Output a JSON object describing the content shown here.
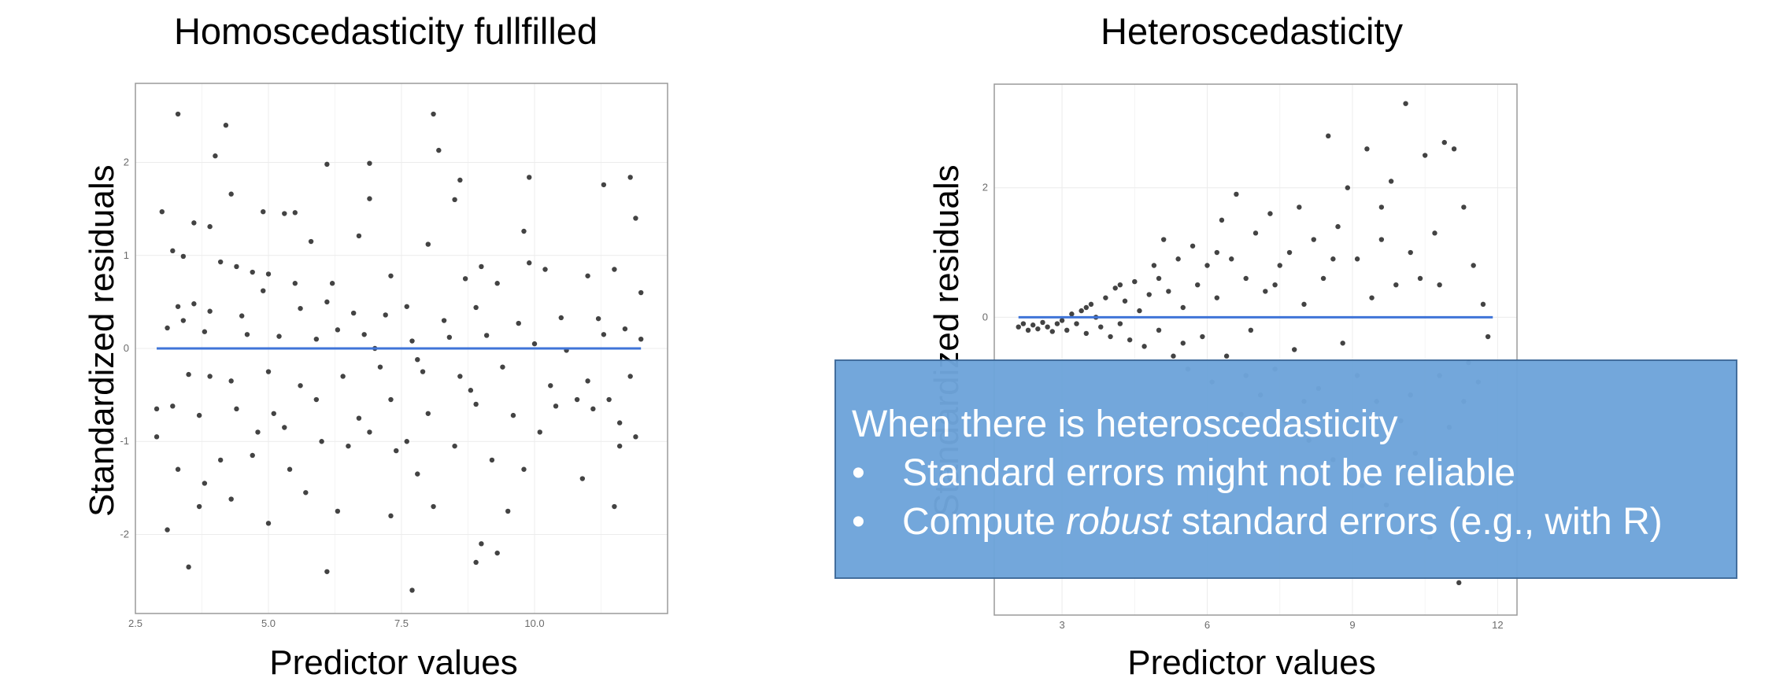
{
  "colors": {
    "fit_line": "#3f74d8",
    "points": "#1a1a1a",
    "overlay_bg": "#6fa5da",
    "grid": "#ececec"
  },
  "chart_data": [
    {
      "type": "scatter",
      "title": "Homoscedasticity fullfilled",
      "xlabel": "Predictor values",
      "ylabel": "Standardized residuals",
      "xlim": [
        2.5,
        12.5
      ],
      "ylim": [
        -2.85,
        2.85
      ],
      "xticks": [
        2.5,
        5.0,
        7.5,
        10.0
      ],
      "xtick_labels": [
        "2.5",
        "5.0",
        "7.5",
        "10.0"
      ],
      "yticks": [
        -2,
        -1,
        0,
        1,
        2
      ],
      "ytick_labels": [
        "-2",
        "-1",
        "0",
        "1",
        "2"
      ],
      "grid": true,
      "fit_line": {
        "y": 0,
        "x_from": 2.9,
        "x_to": 12.0
      },
      "points": [
        [
          3.3,
          2.52
        ],
        [
          4.2,
          2.4
        ],
        [
          8.1,
          2.52
        ],
        [
          8.2,
          2.13
        ],
        [
          4.0,
          2.07
        ],
        [
          6.1,
          1.98
        ],
        [
          6.9,
          1.99
        ],
        [
          9.9,
          1.84
        ],
        [
          11.8,
          1.84
        ],
        [
          11.3,
          1.76
        ],
        [
          8.6,
          1.81
        ],
        [
          4.3,
          1.66
        ],
        [
          6.9,
          1.61
        ],
        [
          3.0,
          1.47
        ],
        [
          4.9,
          1.47
        ],
        [
          5.3,
          1.45
        ],
        [
          5.5,
          1.46
        ],
        [
          8.5,
          1.6
        ],
        [
          3.6,
          1.35
        ],
        [
          3.9,
          1.31
        ],
        [
          5.8,
          1.15
        ],
        [
          6.7,
          1.21
        ],
        [
          8.0,
          1.12
        ],
        [
          9.8,
          1.26
        ],
        [
          11.9,
          1.4
        ],
        [
          3.2,
          1.05
        ],
        [
          3.4,
          0.99
        ],
        [
          4.1,
          0.93
        ],
        [
          4.4,
          0.88
        ],
        [
          4.7,
          0.82
        ],
        [
          5.0,
          0.8
        ],
        [
          6.2,
          0.7
        ],
        [
          7.3,
          0.78
        ],
        [
          8.7,
          0.75
        ],
        [
          9.3,
          0.7
        ],
        [
          10.2,
          0.85
        ],
        [
          11.0,
          0.78
        ],
        [
          11.5,
          0.85
        ],
        [
          12.0,
          0.6
        ],
        [
          3.3,
          0.45
        ],
        [
          3.6,
          0.48
        ],
        [
          3.9,
          0.4
        ],
        [
          4.5,
          0.35
        ],
        [
          5.6,
          0.43
        ],
        [
          6.1,
          0.5
        ],
        [
          6.6,
          0.38
        ],
        [
          7.2,
          0.36
        ],
        [
          7.6,
          0.45
        ],
        [
          8.3,
          0.3
        ],
        [
          8.9,
          0.44
        ],
        [
          9.7,
          0.27
        ],
        [
          10.5,
          0.33
        ],
        [
          11.2,
          0.32
        ],
        [
          11.7,
          0.21
        ],
        [
          3.1,
          0.22
        ],
        [
          3.8,
          0.18
        ],
        [
          4.6,
          0.15
        ],
        [
          5.2,
          0.13
        ],
        [
          5.9,
          0.1
        ],
        [
          6.8,
          0.15
        ],
        [
          7.7,
          0.08
        ],
        [
          8.4,
          0.12
        ],
        [
          9.1,
          0.14
        ],
        [
          10.0,
          0.05
        ],
        [
          10.6,
          -0.02
        ],
        [
          11.3,
          0.15
        ],
        [
          12.0,
          0.1
        ],
        [
          3.5,
          -0.28
        ],
        [
          3.9,
          -0.3
        ],
        [
          4.3,
          -0.35
        ],
        [
          5.0,
          -0.25
        ],
        [
          5.6,
          -0.4
        ],
        [
          6.4,
          -0.3
        ],
        [
          7.1,
          -0.2
        ],
        [
          7.9,
          -0.25
        ],
        [
          8.6,
          -0.3
        ],
        [
          9.4,
          -0.2
        ],
        [
          10.3,
          -0.4
        ],
        [
          11.0,
          -0.35
        ],
        [
          11.8,
          -0.3
        ],
        [
          3.2,
          -0.62
        ],
        [
          3.7,
          -0.72
        ],
        [
          4.4,
          -0.65
        ],
        [
          5.1,
          -0.7
        ],
        [
          5.9,
          -0.55
        ],
        [
          6.7,
          -0.75
        ],
        [
          7.3,
          -0.55
        ],
        [
          8.0,
          -0.7
        ],
        [
          8.9,
          -0.6
        ],
        [
          9.6,
          -0.72
        ],
        [
          10.4,
          -0.62
        ],
        [
          11.4,
          -0.55
        ],
        [
          11.9,
          -0.95
        ],
        [
          2.9,
          -0.95
        ],
        [
          3.3,
          -1.3
        ],
        [
          3.8,
          -1.45
        ],
        [
          4.1,
          -1.2
        ],
        [
          4.7,
          -1.15
        ],
        [
          5.4,
          -1.3
        ],
        [
          6.0,
          -1.0
        ],
        [
          6.5,
          -1.05
        ],
        [
          7.4,
          -1.1
        ],
        [
          7.8,
          -1.35
        ],
        [
          8.5,
          -1.05
        ],
        [
          9.2,
          -1.2
        ],
        [
          9.8,
          -1.3
        ],
        [
          10.9,
          -1.4
        ],
        [
          11.6,
          -1.05
        ],
        [
          3.1,
          -1.95
        ],
        [
          3.7,
          -1.7
        ],
        [
          4.3,
          -1.62
        ],
        [
          5.0,
          -1.88
        ],
        [
          5.7,
          -1.55
        ],
        [
          6.3,
          -1.75
        ],
        [
          7.3,
          -1.8
        ],
        [
          8.1,
          -1.7
        ],
        [
          9.5,
          -1.75
        ],
        [
          11.5,
          -1.7
        ],
        [
          3.5,
          -2.35
        ],
        [
          6.1,
          -2.4
        ],
        [
          7.7,
          -2.6
        ],
        [
          8.9,
          -2.3
        ],
        [
          9.3,
          -2.2
        ],
        [
          9.0,
          -2.1
        ],
        [
          2.9,
          -0.65
        ],
        [
          4.8,
          -0.9
        ],
        [
          5.3,
          -0.85
        ],
        [
          6.9,
          -0.9
        ],
        [
          7.6,
          -1.0
        ],
        [
          10.1,
          -0.9
        ],
        [
          11.1,
          -0.65
        ],
        [
          3.4,
          0.3
        ],
        [
          4.9,
          0.62
        ],
        [
          5.5,
          0.7
        ],
        [
          6.3,
          0.2
        ],
        [
          7.0,
          0.0
        ],
        [
          7.8,
          -0.12
        ],
        [
          8.8,
          -0.45
        ],
        [
          9.0,
          0.88
        ],
        [
          9.9,
          0.92
        ],
        [
          10.8,
          -0.55
        ],
        [
          11.6,
          -0.8
        ]
      ]
    },
    {
      "type": "scatter",
      "title": "Heteroscedasticity",
      "xlabel": "Predictor values",
      "ylabel": "Standardized residuals",
      "xlim": [
        1.6,
        12.4
      ],
      "ylim": [
        -4.6,
        3.6
      ],
      "xticks": [
        3,
        6,
        9,
        12
      ],
      "xtick_labels": [
        "3",
        "6",
        "9",
        "12"
      ],
      "yticks": [
        0,
        2
      ],
      "ytick_labels": [
        "0",
        "2"
      ],
      "grid": true,
      "fit_line": {
        "y": 0,
        "x_from": 2.1,
        "x_to": 11.9
      },
      "points": [
        [
          2.1,
          -0.15
        ],
        [
          2.2,
          -0.1
        ],
        [
          2.3,
          -0.2
        ],
        [
          2.4,
          -0.12
        ],
        [
          2.5,
          -0.18
        ],
        [
          2.6,
          -0.08
        ],
        [
          2.7,
          -0.15
        ],
        [
          2.8,
          -0.22
        ],
        [
          2.9,
          -0.1
        ],
        [
          3.0,
          -0.05
        ],
        [
          3.1,
          -0.2
        ],
        [
          3.2,
          0.05
        ],
        [
          3.3,
          -0.1
        ],
        [
          3.4,
          0.1
        ],
        [
          3.5,
          -0.25
        ],
        [
          3.6,
          0.2
        ],
        [
          3.7,
          0.0
        ],
        [
          3.8,
          -0.15
        ],
        [
          3.9,
          0.3
        ],
        [
          4.0,
          -0.3
        ],
        [
          4.1,
          0.45
        ],
        [
          4.2,
          -0.1
        ],
        [
          4.3,
          0.25
        ],
        [
          4.4,
          -0.35
        ],
        [
          4.5,
          0.55
        ],
        [
          4.6,
          0.1
        ],
        [
          4.7,
          -0.45
        ],
        [
          4.8,
          0.35
        ],
        [
          4.9,
          0.8
        ],
        [
          5.0,
          -0.2
        ],
        [
          5.1,
          1.2
        ],
        [
          5.2,
          0.4
        ],
        [
          5.3,
          -0.6
        ],
        [
          5.4,
          0.9
        ],
        [
          5.5,
          0.15
        ],
        [
          5.6,
          -0.8
        ],
        [
          5.7,
          1.1
        ],
        [
          5.8,
          0.5
        ],
        [
          5.9,
          -0.3
        ],
        [
          6.0,
          0.8
        ],
        [
          6.1,
          -1.0
        ],
        [
          6.2,
          0.3
        ],
        [
          6.3,
          1.5
        ],
        [
          6.4,
          -0.6
        ],
        [
          6.5,
          0.9
        ],
        [
          6.6,
          1.9
        ],
        [
          6.7,
          -1.5
        ],
        [
          6.8,
          0.6
        ],
        [
          6.9,
          -0.2
        ],
        [
          7.0,
          1.3
        ],
        [
          7.1,
          -1.2
        ],
        [
          7.2,
          0.4
        ],
        [
          7.3,
          1.6
        ],
        [
          7.4,
          -0.8
        ],
        [
          7.5,
          0.8
        ],
        [
          7.6,
          -1.6
        ],
        [
          7.7,
          1.0
        ],
        [
          7.8,
          -0.5
        ],
        [
          7.9,
          1.7
        ],
        [
          8.0,
          0.2
        ],
        [
          8.1,
          -1.9
        ],
        [
          8.2,
          1.2
        ],
        [
          8.3,
          -1.1
        ],
        [
          8.4,
          0.6
        ],
        [
          8.5,
          2.8
        ],
        [
          8.6,
          -2.2
        ],
        [
          8.7,
          1.4
        ],
        [
          8.8,
          -0.4
        ],
        [
          8.9,
          2.0
        ],
        [
          9.0,
          -1.8
        ],
        [
          9.1,
          0.9
        ],
        [
          9.2,
          -2.6
        ],
        [
          9.3,
          2.6
        ],
        [
          9.4,
          0.3
        ],
        [
          9.5,
          -1.3
        ],
        [
          9.6,
          1.7
        ],
        [
          9.7,
          -2.9
        ],
        [
          9.8,
          2.1
        ],
        [
          9.9,
          0.5
        ],
        [
          10.0,
          -1.6
        ],
        [
          10.1,
          3.3
        ],
        [
          10.2,
          1.0
        ],
        [
          10.3,
          -2.1
        ],
        [
          10.4,
          0.6
        ],
        [
          10.5,
          2.5
        ],
        [
          10.6,
          -3.4
        ],
        [
          10.7,
          1.3
        ],
        [
          10.8,
          -0.9
        ],
        [
          10.9,
          2.7
        ],
        [
          11.0,
          -1.7
        ],
        [
          11.1,
          2.6
        ],
        [
          11.2,
          -4.1
        ],
        [
          11.3,
          1.7
        ],
        [
          11.4,
          -0.7
        ],
        [
          11.5,
          0.8
        ],
        [
          11.6,
          -1.0
        ],
        [
          11.7,
          0.2
        ],
        [
          11.8,
          -0.3
        ],
        [
          3.5,
          0.15
        ],
        [
          4.2,
          0.5
        ],
        [
          5.0,
          0.6
        ],
        [
          5.5,
          -0.4
        ],
        [
          6.2,
          1.0
        ],
        [
          6.8,
          -0.9
        ],
        [
          7.4,
          0.5
        ],
        [
          8.0,
          -1.3
        ],
        [
          8.6,
          0.9
        ],
        [
          9.1,
          -0.9
        ],
        [
          9.6,
          1.2
        ],
        [
          10.2,
          -1.2
        ],
        [
          10.8,
          0.5
        ],
        [
          11.3,
          -1.3
        ]
      ]
    }
  ],
  "overlay": {
    "heading": "When there is heteroscedasticity",
    "bullet_char": "•",
    "bullet1": "Standard errors might not be reliable",
    "bullet2_before": "Compute ",
    "bullet2_em": "robust",
    "bullet2_after": " standard errors (e.g., with R)"
  }
}
